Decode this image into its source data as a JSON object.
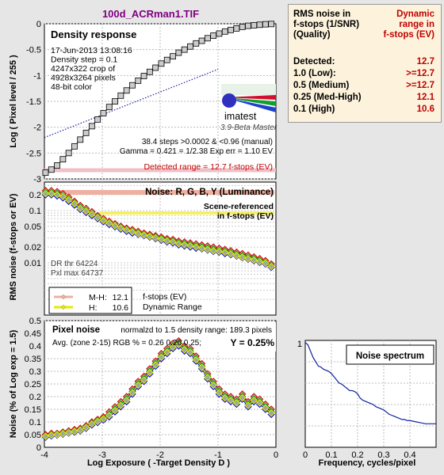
{
  "file_title": "100d_ACRman1.TIF",
  "colors": {
    "bg": "#e6e6e6",
    "title": "#800080",
    "side_bg": "#fdf3dc",
    "detected": "#c00000",
    "red": "#dd0000",
    "green": "#00a000",
    "blue": "#0000dd",
    "yellow": "#e8e800",
    "salmon": "#f0b0a0",
    "logo_red": "#d01030",
    "logo_green": "#10a030",
    "logo_blue": "#2040d0"
  },
  "side_panel": {
    "col1_header": [
      "RMS noise in",
      "f-stops (1/SNR)",
      "(Quality)"
    ],
    "col2_header": [
      "Dynamic",
      "range in",
      "f-stops (EV)"
    ],
    "rows": [
      {
        "label": "Detected:",
        "value": "12.7",
        "color": "#c00000"
      },
      {
        "label": "1.0   (Low):",
        "value": ">=12.7",
        "color": "#c00000"
      },
      {
        "label": "0.5   (Medium)",
        "value": ">=12.7",
        "color": "#c00000"
      },
      {
        "label": "0.25 (Med-High)",
        "value": "12.1",
        "color": "#c00000"
      },
      {
        "label": "0.1   (High)",
        "value": "10.6",
        "color": "#c00000"
      }
    ]
  },
  "chart_data": [
    {
      "type": "line",
      "panel": "density",
      "title": "Density response",
      "ylabel": "Log ( Pixel level / 255 )",
      "xlim": [
        -4,
        0
      ],
      "ylim": [
        -3,
        0
      ],
      "yticks": [
        "0",
        "-0.5",
        "-1",
        "-1.5",
        "-2",
        "-2.5",
        "-3"
      ],
      "info_lines": [
        "17-Jun-2013 13:08:16",
        "Density step = 0.1",
        "4247x322 crop of",
        "4928x3264 pixels",
        "48-bit color"
      ],
      "logo_text": "imatest",
      "logo_sub": "3.9-Beta  Master",
      "stats": [
        "38.4 steps >0.0002 & <0.96 (manual)",
        "Gamma = 0.421 = 1/2.38  Exp err = 1.10 EV"
      ],
      "detected": "Detected range = 12.7 f-stops (EV)",
      "series": {
        "x": [
          -3.98,
          -3.88,
          -3.78,
          -3.68,
          -3.58,
          -3.48,
          -3.38,
          -3.28,
          -3.18,
          -3.08,
          -2.98,
          -2.88,
          -2.78,
          -2.68,
          -2.58,
          -2.48,
          -2.38,
          -2.28,
          -2.18,
          -2.08,
          -1.98,
          -1.88,
          -1.78,
          -1.68,
          -1.58,
          -1.48,
          -1.38,
          -1.28,
          -1.18,
          -1.08,
          -0.98,
          -0.88,
          -0.78,
          -0.68,
          -0.58,
          -0.48,
          -0.38,
          -0.28,
          -0.18,
          -0.08
        ],
        "y": [
          -2.88,
          -2.82,
          -2.74,
          -2.62,
          -2.5,
          -2.37,
          -2.24,
          -2.11,
          -1.98,
          -1.85,
          -1.73,
          -1.61,
          -1.5,
          -1.39,
          -1.29,
          -1.19,
          -1.1,
          -1.01,
          -0.93,
          -0.85,
          -0.77,
          -0.7,
          -0.63,
          -0.56,
          -0.5,
          -0.44,
          -0.38,
          -0.33,
          -0.28,
          -0.23,
          -0.19,
          -0.15,
          -0.12,
          -0.09,
          -0.06,
          -0.04,
          -0.03,
          -0.02,
          -0.01,
          -0.005
        ]
      }
    },
    {
      "type": "line",
      "panel": "noise_fstops",
      "title": "Noise: R, G, B, Y (Luminance)",
      "scene_label": [
        "Scene-referenced",
        "in f-stops (EV)"
      ],
      "ylabel": "RMS noise (f-stops or EV)",
      "yscale": "log",
      "xlim": [
        -4,
        0
      ],
      "ylim": [
        0.001,
        0.35
      ],
      "yticks": [
        {
          "v": 0.2,
          "label": "0.2"
        },
        {
          "v": 0.1,
          "label": "0.1"
        },
        {
          "v": 0.05,
          "label": "0.05"
        },
        {
          "v": 0.02,
          "label": "0.02"
        },
        {
          "v": 0.01,
          "label": "0.01"
        }
      ],
      "dr_lines": [
        "DR thr 64224",
        "Pxl max 64737"
      ],
      "legend": [
        {
          "label": "M-H:",
          "value": "12.1",
          "color": "#f0b0a0"
        },
        {
          "label": "H:",
          "value": "10.6",
          "color": "#e8e800"
        }
      ],
      "legend_note": [
        "f-stops (EV)",
        "Dynamic Range"
      ],
      "series": [
        {
          "color": "#dd0000",
          "values": [
            0.24,
            0.24,
            0.23,
            0.21,
            0.18,
            0.15,
            0.125,
            0.11,
            0.095,
            0.08,
            0.07,
            0.062,
            0.056,
            0.05,
            0.046,
            0.043,
            0.04,
            0.037,
            0.035,
            0.033,
            0.031,
            0.029,
            0.028,
            0.026,
            0.025,
            0.024,
            0.023,
            0.022,
            0.021,
            0.02,
            0.019,
            0.018,
            0.017,
            0.016,
            0.015,
            0.014,
            0.013,
            0.012,
            0.011,
            0.0095
          ]
        },
        {
          "color": "#00a000",
          "values": [
            0.22,
            0.22,
            0.21,
            0.19,
            0.165,
            0.14,
            0.115,
            0.1,
            0.087,
            0.075,
            0.065,
            0.058,
            0.052,
            0.047,
            0.043,
            0.04,
            0.037,
            0.035,
            0.033,
            0.031,
            0.029,
            0.027,
            0.026,
            0.024,
            0.023,
            0.022,
            0.021,
            0.02,
            0.019,
            0.018,
            0.017,
            0.0165,
            0.0155,
            0.0145,
            0.0135,
            0.0125,
            0.012,
            0.011,
            0.01,
            0.0088
          ]
        },
        {
          "color": "#0000dd",
          "values": [
            0.2,
            0.2,
            0.19,
            0.175,
            0.15,
            0.127,
            0.105,
            0.092,
            0.08,
            0.07,
            0.061,
            0.054,
            0.049,
            0.044,
            0.04,
            0.037,
            0.035,
            0.033,
            0.031,
            0.029,
            0.027,
            0.025,
            0.024,
            0.022,
            0.021,
            0.02,
            0.019,
            0.0185,
            0.0175,
            0.0165,
            0.016,
            0.015,
            0.0143,
            0.0135,
            0.0125,
            0.0117,
            0.011,
            0.0102,
            0.0095,
            0.0082
          ]
        },
        {
          "color": "#e8e800",
          "values": [
            0.21,
            0.21,
            0.2,
            0.185,
            0.16,
            0.135,
            0.11,
            0.097,
            0.085,
            0.073,
            0.064,
            0.057,
            0.051,
            0.046,
            0.042,
            0.039,
            0.036,
            0.034,
            0.032,
            0.03,
            0.028,
            0.026,
            0.025,
            0.023,
            0.022,
            0.021,
            0.02,
            0.019,
            0.018,
            0.017,
            0.0165,
            0.0158,
            0.0148,
            0.0138,
            0.0128,
            0.012,
            0.0113,
            0.0105,
            0.0098,
            0.0085
          ]
        }
      ]
    },
    {
      "type": "line",
      "panel": "pixel_noise",
      "title": "Pixel noise",
      "subtitle": "normalzd to 1.5 density range: 189.3 pixels",
      "avg_line": "Avg. (zone 2-15) RGB % = 0.26  0.26  0.25;",
      "y_label_bold": "Y = 0.25%",
      "xlabel": "Log Exposure ( -Target Density D )",
      "ylabel": "Noise (% of Log exp = 1.5)",
      "xlim": [
        -4,
        0
      ],
      "ylim": [
        0,
        0.5
      ],
      "xticks": [
        "-4",
        "-3",
        "-2",
        "-1",
        "0"
      ],
      "yticks": [
        "0",
        "0.05",
        "0.1",
        "0.15",
        "0.2",
        "0.25",
        "0.3",
        "0.35",
        "0.4",
        "0.45",
        "0.5"
      ],
      "series": [
        {
          "color": "#dd0000",
          "values": [
            0.05,
            0.055,
            0.055,
            0.06,
            0.065,
            0.07,
            0.075,
            0.085,
            0.1,
            0.11,
            0.12,
            0.14,
            0.16,
            0.18,
            0.2,
            0.23,
            0.26,
            0.28,
            0.31,
            0.34,
            0.37,
            0.39,
            0.41,
            0.42,
            0.4,
            0.39,
            0.36,
            0.33,
            0.29,
            0.26,
            0.23,
            0.21,
            0.2,
            0.19,
            0.21,
            0.18,
            0.2,
            0.19,
            0.17,
            0.15
          ]
        },
        {
          "color": "#00a000",
          "values": [
            0.045,
            0.05,
            0.052,
            0.056,
            0.06,
            0.065,
            0.07,
            0.08,
            0.095,
            0.105,
            0.115,
            0.13,
            0.15,
            0.17,
            0.19,
            0.22,
            0.25,
            0.27,
            0.3,
            0.33,
            0.36,
            0.38,
            0.4,
            0.41,
            0.39,
            0.38,
            0.35,
            0.32,
            0.28,
            0.25,
            0.22,
            0.2,
            0.19,
            0.18,
            0.2,
            0.17,
            0.19,
            0.18,
            0.16,
            0.14
          ]
        },
        {
          "color": "#0000dd",
          "values": [
            0.04,
            0.045,
            0.048,
            0.052,
            0.056,
            0.06,
            0.065,
            0.075,
            0.088,
            0.098,
            0.108,
            0.12,
            0.14,
            0.16,
            0.18,
            0.21,
            0.24,
            0.26,
            0.29,
            0.32,
            0.35,
            0.37,
            0.39,
            0.4,
            0.38,
            0.37,
            0.34,
            0.31,
            0.27,
            0.24,
            0.21,
            0.19,
            0.18,
            0.17,
            0.19,
            0.16,
            0.18,
            0.17,
            0.15,
            0.13
          ]
        },
        {
          "color": "#e8e800",
          "values": [
            0.043,
            0.048,
            0.05,
            0.054,
            0.058,
            0.063,
            0.068,
            0.078,
            0.092,
            0.102,
            0.112,
            0.125,
            0.145,
            0.165,
            0.185,
            0.215,
            0.245,
            0.265,
            0.295,
            0.325,
            0.355,
            0.375,
            0.395,
            0.405,
            0.385,
            0.375,
            0.345,
            0.315,
            0.275,
            0.245,
            0.215,
            0.195,
            0.185,
            0.175,
            0.195,
            0.165,
            0.185,
            0.175,
            0.155,
            0.135
          ]
        }
      ]
    },
    {
      "type": "line",
      "panel": "noise_spectrum",
      "title": "Noise spectrum",
      "xlabel": "Frequency, cycles/pixel",
      "xlim": [
        0,
        0.5
      ],
      "ylim": [
        0,
        1
      ],
      "xticks": [
        "0",
        "0.1",
        "0.2",
        "0.3",
        "0.4"
      ],
      "yticks": [
        "1"
      ],
      "series": {
        "x": [
          0.0,
          0.01,
          0.02,
          0.03,
          0.04,
          0.05,
          0.06,
          0.07,
          0.08,
          0.09,
          0.1,
          0.11,
          0.12,
          0.13,
          0.14,
          0.15,
          0.16,
          0.17,
          0.18,
          0.19,
          0.2,
          0.21,
          0.22,
          0.23,
          0.24,
          0.25,
          0.26,
          0.27,
          0.28,
          0.29,
          0.3,
          0.31,
          0.32,
          0.33,
          0.34,
          0.35,
          0.36,
          0.37,
          0.38,
          0.39,
          0.4,
          0.42,
          0.44,
          0.46,
          0.48,
          0.5
        ],
        "y": [
          0.98,
          0.96,
          0.9,
          0.84,
          0.8,
          0.76,
          0.75,
          0.73,
          0.72,
          0.71,
          0.69,
          0.66,
          0.63,
          0.6,
          0.59,
          0.57,
          0.55,
          0.53,
          0.53,
          0.52,
          0.5,
          0.46,
          0.44,
          0.43,
          0.42,
          0.41,
          0.4,
          0.38,
          0.37,
          0.36,
          0.35,
          0.33,
          0.31,
          0.3,
          0.29,
          0.28,
          0.27,
          0.26,
          0.26,
          0.25,
          0.25,
          0.24,
          0.23,
          0.22,
          0.22,
          0.22
        ]
      }
    }
  ]
}
